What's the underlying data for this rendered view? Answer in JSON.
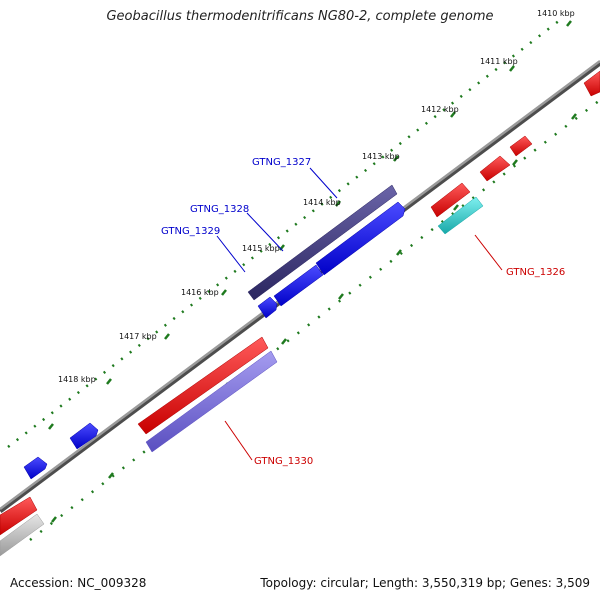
{
  "title": "Geobacillus thermodenitrificans NG80-2, complete genome",
  "footer": {
    "accession": "Accession: NC_009328",
    "summary": "Topology: circular; Length: 3,550,319 bp; Genes: 3,509"
  },
  "ticks": [
    "1410 kbp",
    "1411 kbp",
    "1412 kbp",
    "1413 kbp",
    "1414 kbp",
    "1415 kbp",
    "1416 kbp",
    "1417 kbp",
    "1418 kbp"
  ],
  "gene_labels": [
    {
      "text": "GTNG_1327",
      "color": "#0000cc"
    },
    {
      "text": "GTNG_1328",
      "color": "#0000cc"
    },
    {
      "text": "GTNG_1329",
      "color": "#0000cc"
    },
    {
      "text": "GTNG_1326",
      "color": "#cc0000"
    },
    {
      "text": "GTNG_1330",
      "color": "#cc0000"
    }
  ],
  "colors": {
    "backbone": "#7f7f7f",
    "tick_dots": "#1f7a1f",
    "forward_gene": "#0000ee",
    "reverse_gene": "#ee0000",
    "cog_purple": "#3f3a7a",
    "cog_lavender": "#7a6fd6",
    "cog_cyan": "#25c8c8",
    "cog_gray": "#bfbfbf"
  }
}
